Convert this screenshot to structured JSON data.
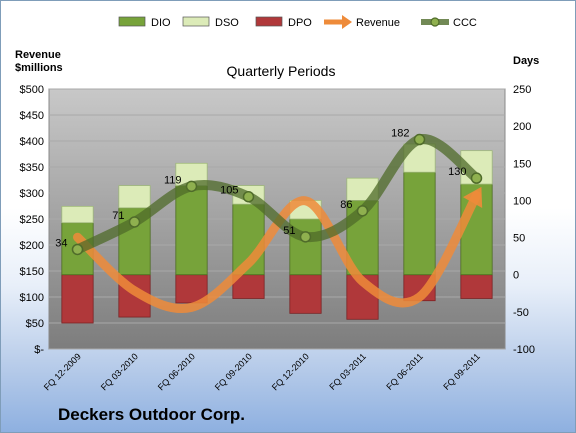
{
  "chart_data": {
    "type": "bar",
    "title": "Quarterly Periods",
    "company": "Deckers Outdoor Corp.",
    "left_axis_title": [
      "Revenue",
      "$millions"
    ],
    "right_axis_title": "Days",
    "categories": [
      "FQ 12-2009",
      "FQ 03-2010",
      "FQ 06-2010",
      "FQ 09-2010",
      "FQ 12-2010",
      "FQ 03-2011",
      "FQ 06-2011",
      "FQ 09-2011"
    ],
    "left_axis": {
      "min": 0,
      "max": 500,
      "step": 50,
      "tick_labels": [
        "$-",
        "$50",
        "$100",
        "$150",
        "$200",
        "$250",
        "$300",
        "$350",
        "$400",
        "$450",
        "$500"
      ]
    },
    "right_axis": {
      "min": -100,
      "max": 250,
      "step": 50,
      "tick_labels": [
        "-100",
        "-50",
        "0",
        "50",
        "100",
        "150",
        "200",
        "250"
      ]
    },
    "series": [
      {
        "name": "DIO",
        "axis": "right",
        "kind": "stacked-bar",
        "color": "#77a33a",
        "values": [
          70,
          90,
          120,
          95,
          75,
          100,
          138,
          122
        ]
      },
      {
        "name": "DSO",
        "axis": "right",
        "kind": "stacked-bar",
        "color": "#dcebb8",
        "values": [
          22,
          30,
          30,
          25,
          25,
          30,
          38,
          45
        ]
      },
      {
        "name": "DPO",
        "axis": "right",
        "kind": "negative-bar",
        "color": "#b0383a",
        "values": [
          -65,
          -57,
          -38,
          -32,
          -52,
          -60,
          -35,
          -32
        ]
      },
      {
        "name": "Revenue",
        "axis": "left",
        "kind": "line",
        "color": "#ee8b3a",
        "values": [
          215,
          112,
          80,
          165,
          285,
          130,
          100,
          295
        ]
      },
      {
        "name": "CCC",
        "axis": "right",
        "kind": "line",
        "color": "#4f6b2a",
        "values": [
          34,
          71,
          119,
          105,
          51,
          86,
          182,
          130
        ],
        "data_labels": [
          "34",
          "71",
          "119",
          "105",
          "51",
          "86",
          "182",
          "130"
        ]
      }
    ],
    "legend": {
      "placement": "top",
      "items": [
        {
          "name": "DIO",
          "symbol": "bar",
          "color": "#77a33a"
        },
        {
          "name": "DSO",
          "symbol": "bar",
          "color": "#dcebb8"
        },
        {
          "name": "DPO",
          "symbol": "bar",
          "color": "#b0383a"
        },
        {
          "name": "Revenue",
          "symbol": "arrow",
          "color": "#ee8b3a"
        },
        {
          "name": "CCC",
          "symbol": "line-marker",
          "color": "#4f6b2a"
        }
      ]
    },
    "grid": true,
    "plot_background": "#8c8c8c"
  }
}
